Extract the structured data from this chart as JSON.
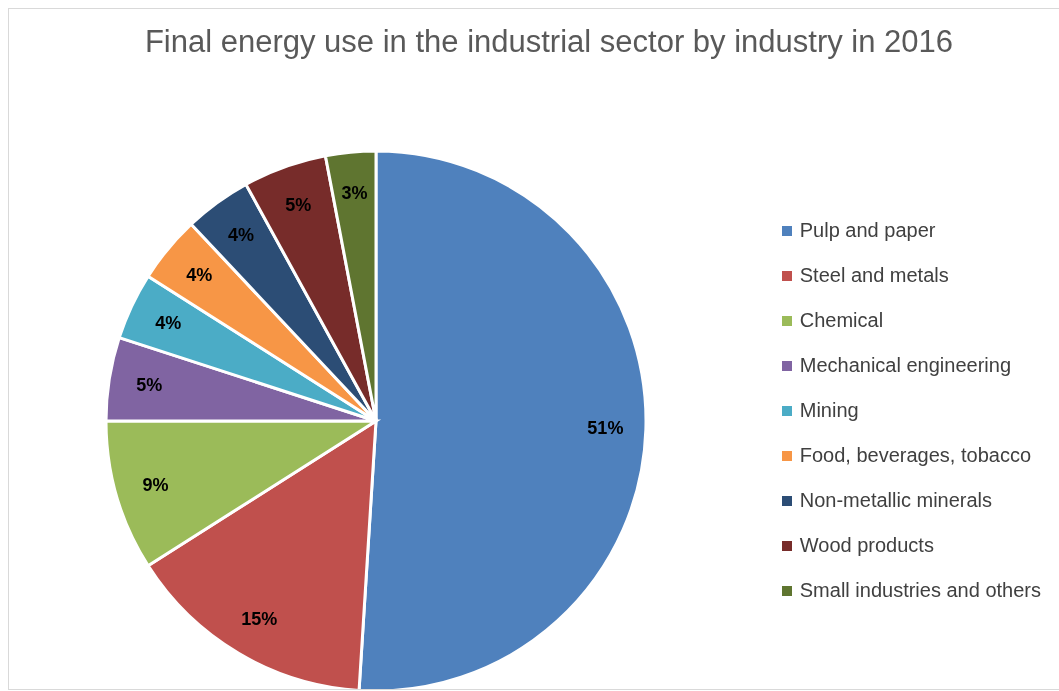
{
  "chart_data": {
    "type": "pie",
    "title": "Final energy use in the industrial sector by industry in 2016",
    "categories": [
      "Pulp and paper",
      "Steel and metals",
      "Chemical",
      "Mechanical engineering",
      "Mining",
      "Food, beverages, tobacco",
      "Non-metallic minerals",
      "Wood products",
      "Small industries and others"
    ],
    "values": [
      51,
      15,
      9,
      5,
      4,
      4,
      4,
      5,
      3
    ],
    "colors": [
      "#4f81bd",
      "#c0504d",
      "#9bbb59",
      "#8064a2",
      "#4bacc6",
      "#f79646",
      "#2c4d75",
      "#772c2a",
      "#5f7530"
    ],
    "value_labels": [
      "51%",
      "15%",
      "9%",
      "5%",
      "4%",
      "4%",
      "4%",
      "5%",
      "3%"
    ],
    "legend": "right"
  }
}
